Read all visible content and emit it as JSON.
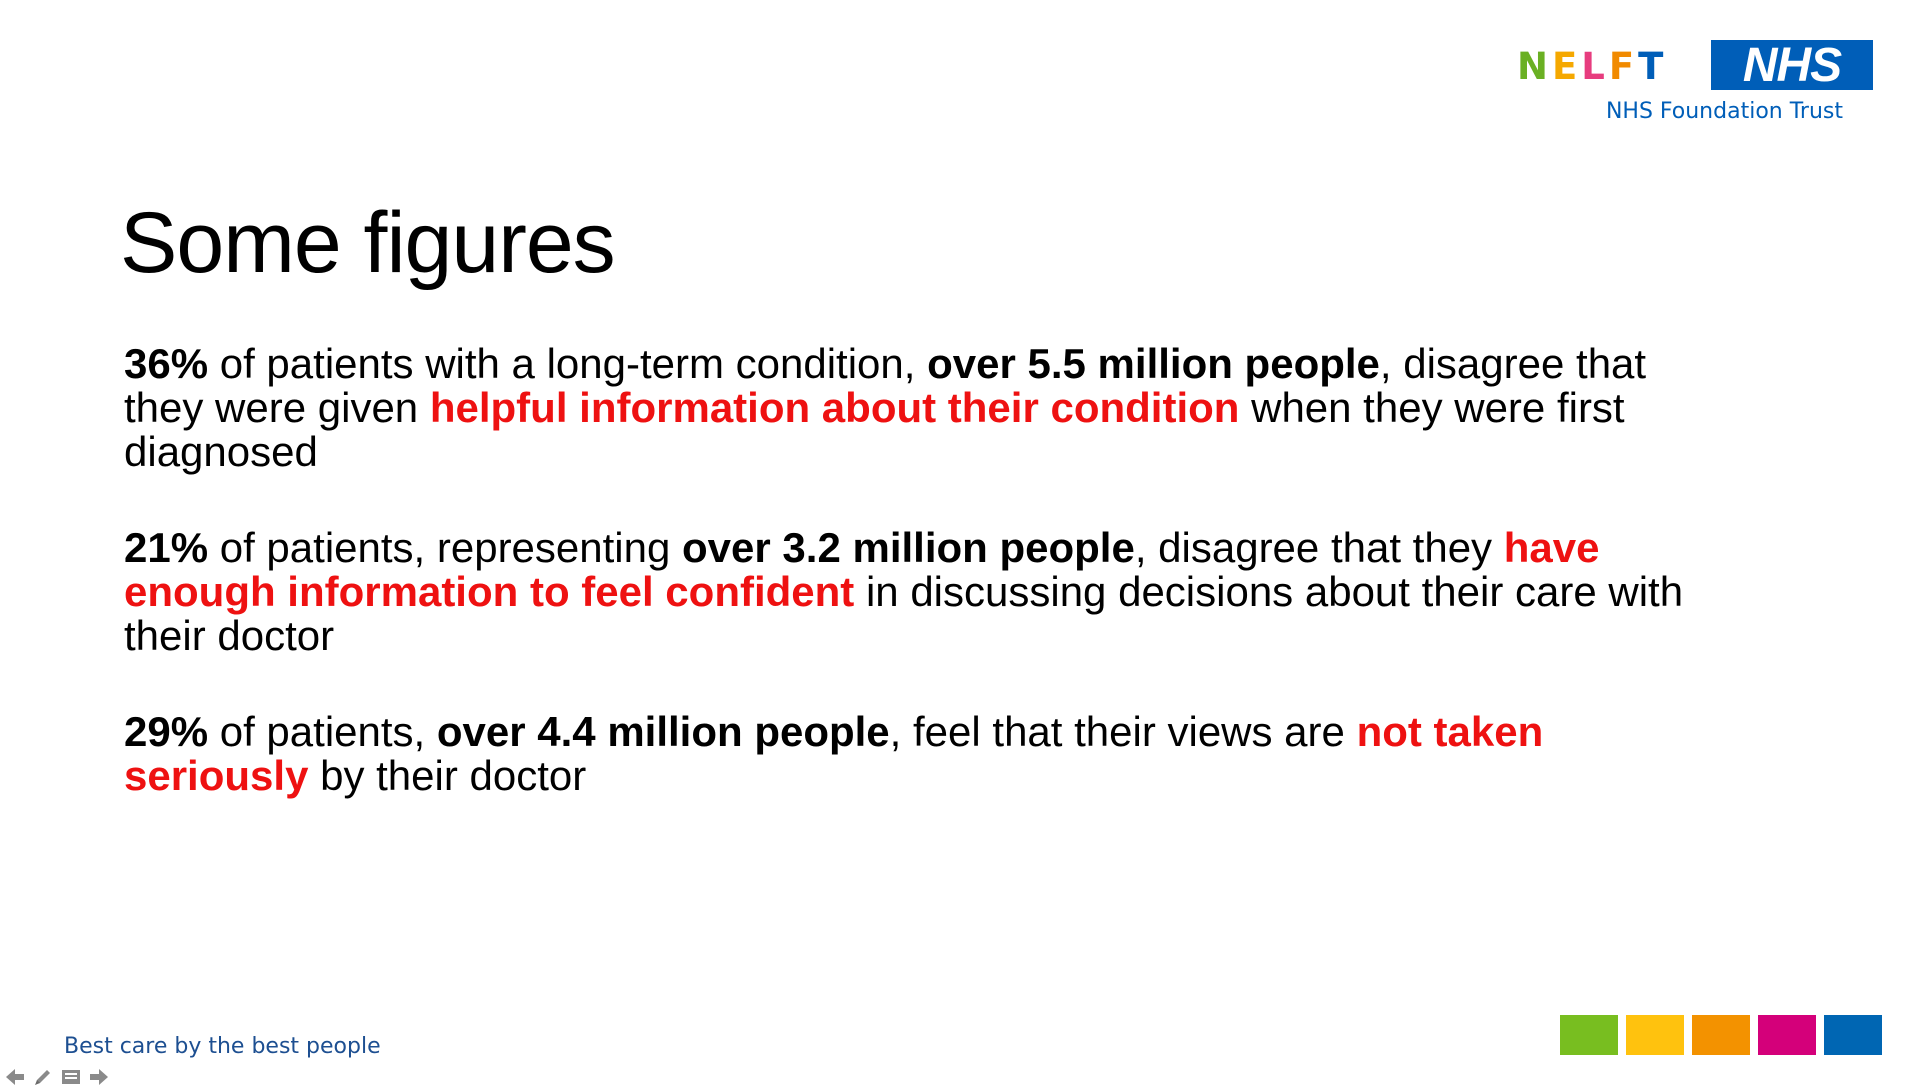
{
  "logo": {
    "nelft_letters": [
      {
        "char": "N",
        "color": "#6ab023"
      },
      {
        "char": "E",
        "color": "#f5a800"
      },
      {
        "char": "L",
        "color": "#e73c7e"
      },
      {
        "char": "F",
        "color": "#f18a00"
      },
      {
        "char": "T",
        "color": "#005eb8"
      }
    ],
    "nhs_text": "NHS",
    "trust_text": "NHS Foundation Trust"
  },
  "slide": {
    "title": "Some figures",
    "paragraphs": [
      {
        "segments": [
          {
            "text": "36%",
            "style": "bold"
          },
          {
            "text": " of patients with a long-term condition, ",
            "style": "normal"
          },
          {
            "text": "over 5.5 million people",
            "style": "bold"
          },
          {
            "text": ", disagree that they were given ",
            "style": "normal"
          },
          {
            "text": "helpful information about their condition",
            "style": "red"
          },
          {
            "text": " when they were first diagnosed",
            "style": "normal"
          }
        ]
      },
      {
        "segments": [
          {
            "text": "21%",
            "style": "bold"
          },
          {
            "text": " of patients, representing ",
            "style": "normal"
          },
          {
            "text": "over 3.2 million people",
            "style": "bold"
          },
          {
            "text": ", disagree that they ",
            "style": "normal"
          },
          {
            "text": "have enough information to feel confident",
            "style": "red"
          },
          {
            "text": " in discussing decisions about their care with their doctor",
            "style": "normal"
          }
        ]
      },
      {
        "segments": [
          {
            "text": "29%",
            "style": "bold"
          },
          {
            "text": " of patients, ",
            "style": "normal"
          },
          {
            "text": "over 4.4 million people",
            "style": "bold"
          },
          {
            "text": ", feel that their views are ",
            "style": "normal"
          },
          {
            "text": "not taken seriously",
            "style": "red"
          },
          {
            "text": " by their doctor",
            "style": "normal"
          }
        ]
      }
    ]
  },
  "footer": {
    "tagline": "Best care by the best people",
    "brand_colors": [
      "#78be20",
      "#ffc20e",
      "#f39200",
      "#d4007a",
      "#0066b3"
    ]
  },
  "navigation": {
    "icons": [
      "arrow-left-icon",
      "pen-icon",
      "menu-icon",
      "arrow-right-icon"
    ]
  }
}
